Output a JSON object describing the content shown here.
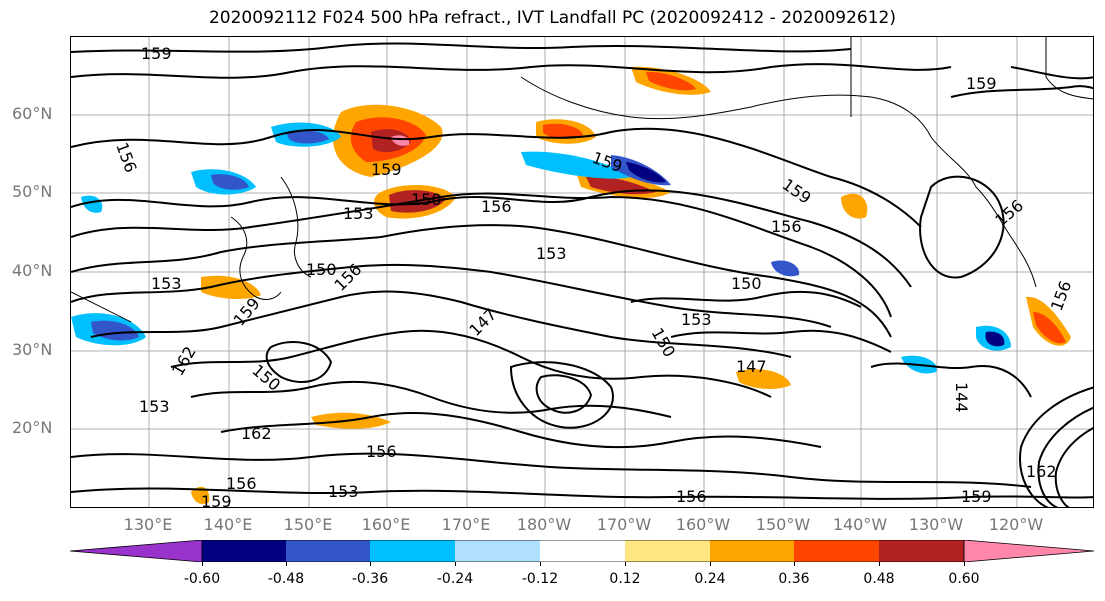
{
  "title": "2020092112 F024 500 hPa refract., IVT Landfall PC (2020092412 - 2020092612)",
  "lat_labels": [
    "60°N",
    "50°N",
    "40°N",
    "30°N",
    "20°N"
  ],
  "lon_labels": [
    "130°E",
    "140°E",
    "150°E",
    "160°E",
    "170°E",
    "180°W",
    "170°W",
    "160°W",
    "150°W",
    "140°W",
    "130°W",
    "120°W"
  ],
  "contour_labels": [
    "159",
    "156",
    "159",
    "159",
    "150",
    "153",
    "156",
    "150",
    "153",
    "153",
    "150",
    "156",
    "162",
    "159",
    "147",
    "150",
    "153",
    "147",
    "144",
    "162",
    "153",
    "156",
    "159",
    "156",
    "153",
    "162",
    "156",
    "159",
    "150",
    "156",
    "159",
    "159",
    "162",
    "156",
    "156"
  ],
  "colorbar": {
    "ticks": [
      "-0.60",
      "-0.48",
      "-0.36",
      "-0.24",
      "-0.12",
      "0.12",
      "0.24",
      "0.36",
      "0.48",
      "0.60"
    ],
    "colors": [
      "#9933cc",
      "#000080",
      "#3355cc",
      "#00bfff",
      "#b0e0ff",
      "#ffffff",
      "#ffe680",
      "#ffa500",
      "#ff4500",
      "#b22222",
      "#ff88aa"
    ]
  }
}
